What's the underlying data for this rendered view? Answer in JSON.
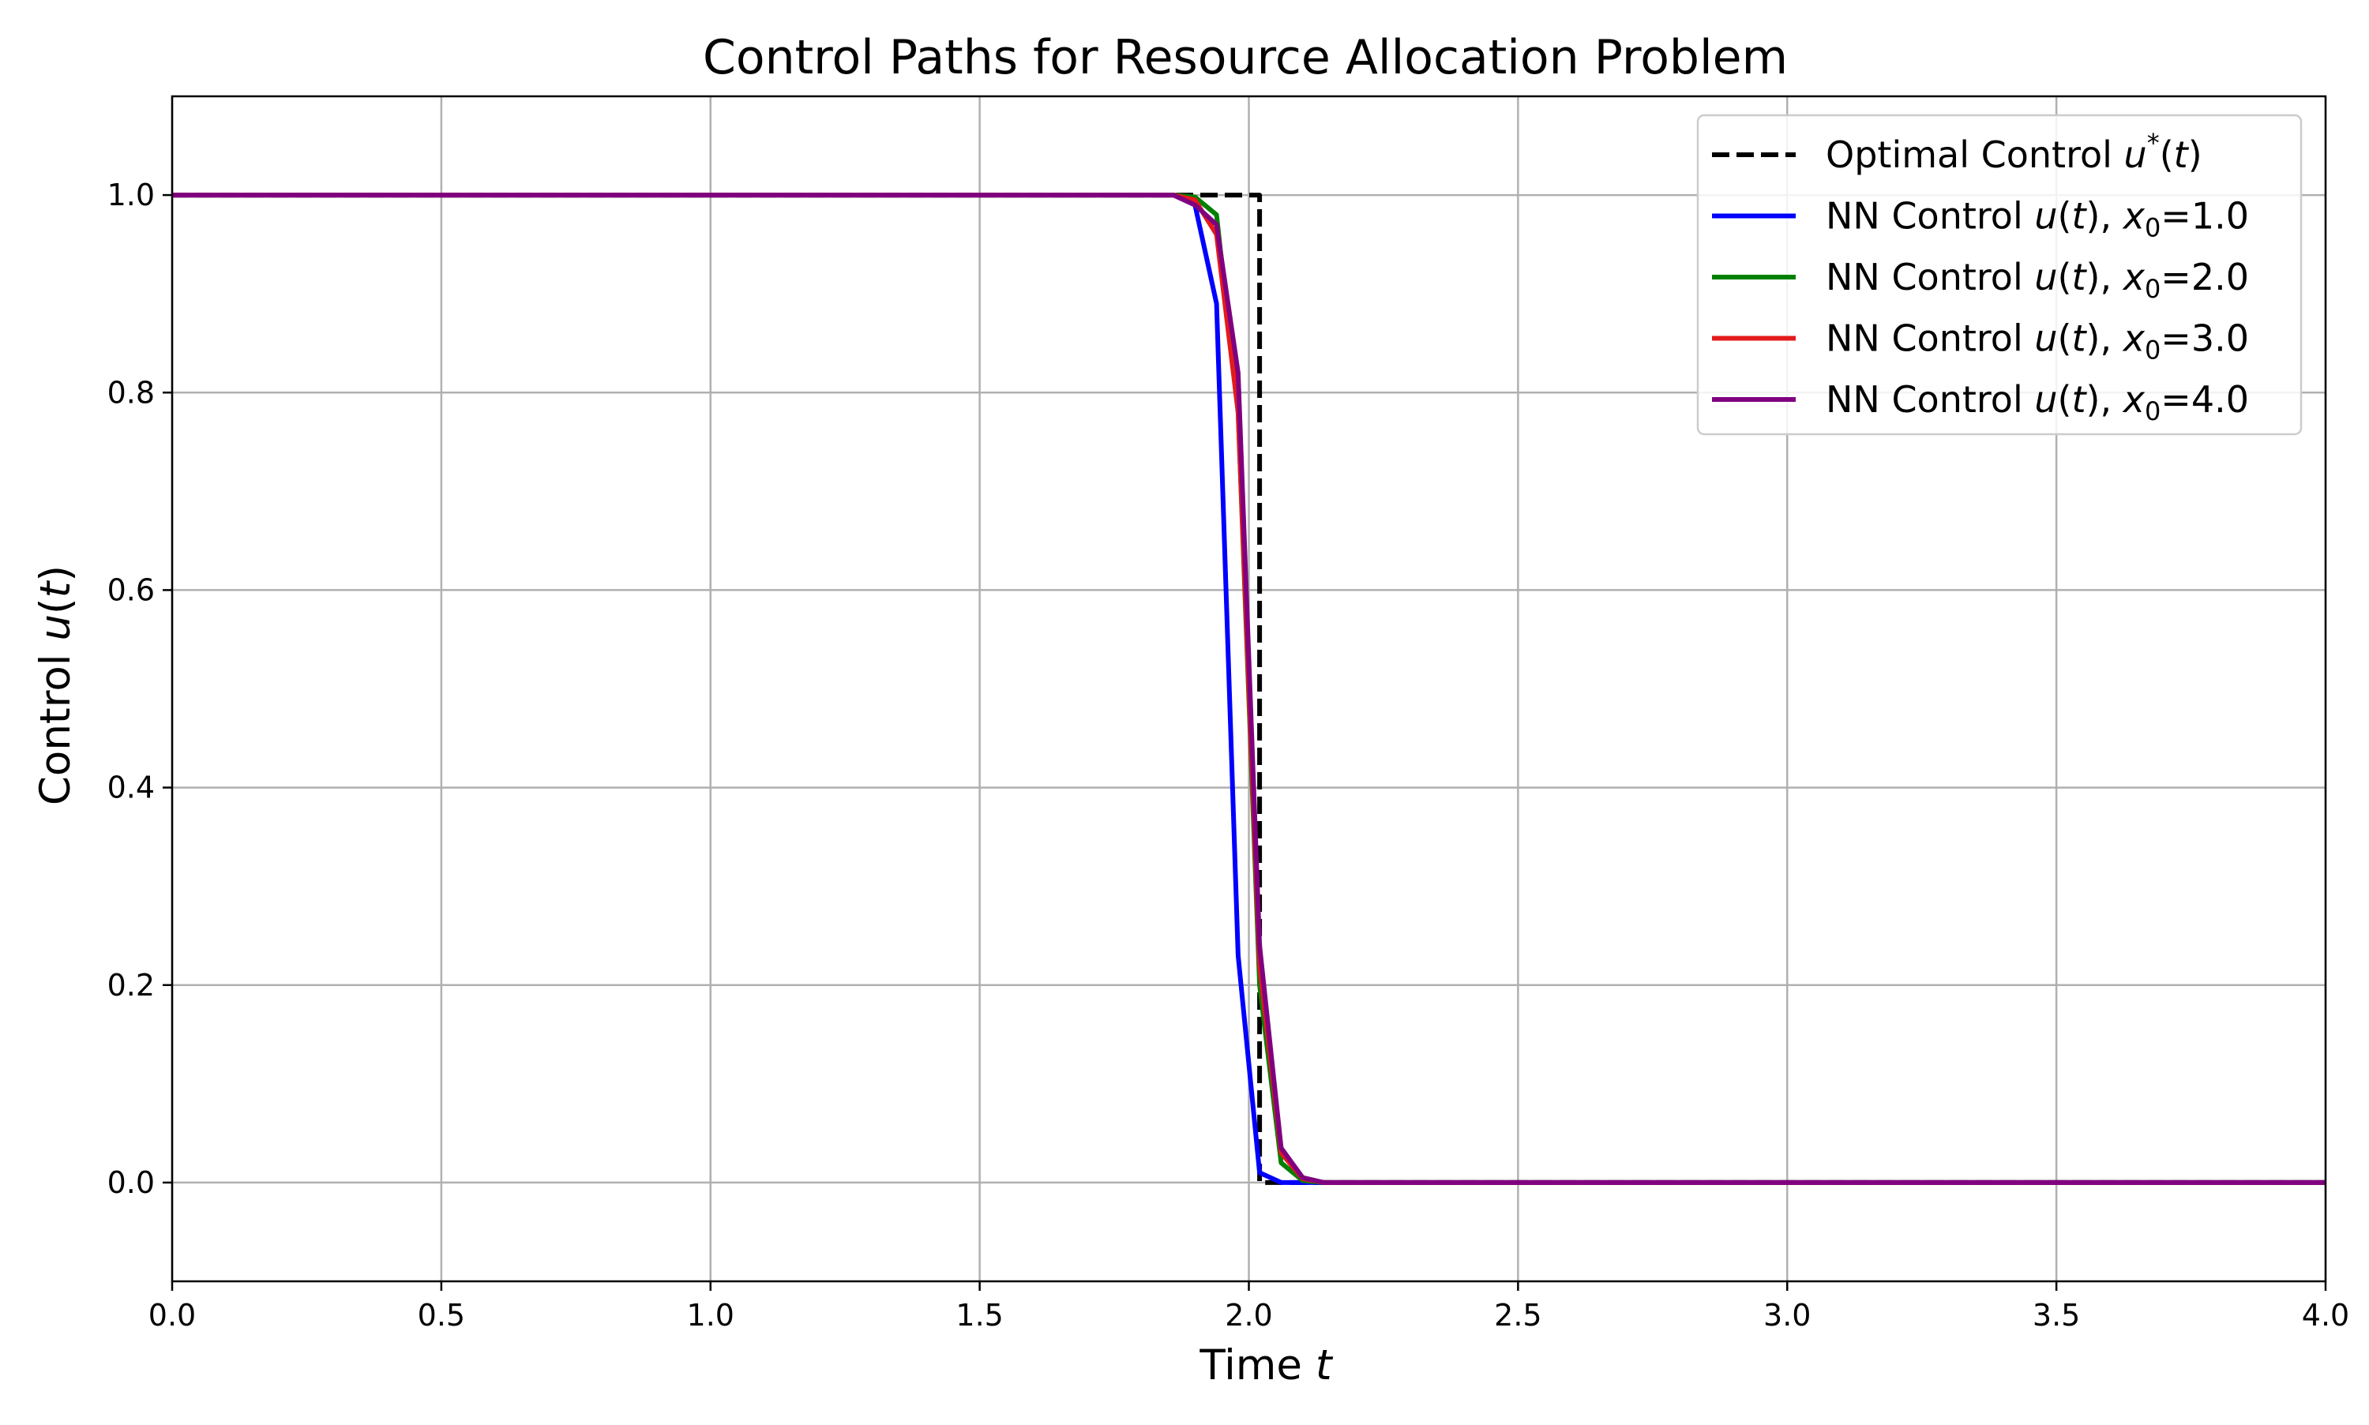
{
  "chart_data": {
    "type": "line",
    "title": "Control Paths for Resource Allocation Problem",
    "xlabel": {
      "prefix": "Time ",
      "var": "t"
    },
    "ylabel": {
      "prefix": "Control ",
      "func": "u",
      "var": "t"
    },
    "xlim": [
      0.0,
      4.0
    ],
    "ylim": [
      -0.1,
      1.1
    ],
    "xticks": [
      0.0,
      0.5,
      1.0,
      1.5,
      2.0,
      2.5,
      3.0,
      3.5,
      4.0
    ],
    "xtick_labels": [
      "0.0",
      "0.5",
      "1.0",
      "1.5",
      "2.0",
      "2.5",
      "3.0",
      "3.5",
      "4.0"
    ],
    "yticks": [
      0.0,
      0.2,
      0.4,
      0.6,
      0.8,
      1.0
    ],
    "ytick_labels": [
      "0.0",
      "0.2",
      "0.4",
      "0.6",
      "0.8",
      "1.0"
    ],
    "grid": true,
    "legend_position": "top-right",
    "series": [
      {
        "name": "Optimal Control u*(t)",
        "legend": {
          "text": "Optimal Control ",
          "func": "u",
          "sup": "*",
          "var": "t"
        },
        "color": "#000000",
        "dashed": true,
        "x": [
          0.0,
          1.98,
          1.98,
          2.02,
          2.02,
          4.0
        ],
        "y": [
          1.0,
          1.0,
          1.0,
          1.0,
          0.0,
          0.0
        ]
      },
      {
        "name": "NN Control u(t), x0=1.0",
        "legend": {
          "text": "NN Control ",
          "func": "u",
          "var": "t",
          "sub": "0",
          "val": "=1.0"
        },
        "color": "#0000ff",
        "dashed": false,
        "x": [
          0.0,
          1.86,
          1.9,
          1.94,
          1.98,
          2.02,
          2.06,
          2.1,
          2.14,
          4.0
        ],
        "y": [
          1.0,
          1.0,
          0.99,
          0.89,
          0.23,
          0.01,
          0.0,
          0.0,
          0.0,
          0.0
        ]
      },
      {
        "name": "NN Control u(t), x0=2.0",
        "legend": {
          "text": "NN Control ",
          "func": "u",
          "var": "t",
          "sub": "0",
          "val": "=2.0"
        },
        "color": "#008000",
        "dashed": false,
        "x": [
          0.0,
          1.86,
          1.9,
          1.94,
          1.98,
          2.02,
          2.06,
          2.1,
          2.14,
          4.0
        ],
        "y": [
          1.0,
          1.0,
          0.998,
          0.98,
          0.78,
          0.2,
          0.02,
          0.002,
          0.0,
          0.0
        ]
      },
      {
        "name": "NN Control u(t), x0=3.0",
        "legend": {
          "text": "NN Control ",
          "func": "u",
          "var": "t",
          "sub": "0",
          "val": "=3.0"
        },
        "color": "#e41a1c",
        "dashed": false,
        "x": [
          0.0,
          1.86,
          1.9,
          1.94,
          1.98,
          2.02,
          2.06,
          2.1,
          2.14,
          4.0
        ],
        "y": [
          1.0,
          1.0,
          0.995,
          0.96,
          0.78,
          0.22,
          0.03,
          0.004,
          0.0,
          0.0
        ]
      },
      {
        "name": "NN Control u(t), x0=4.0",
        "legend": {
          "text": "NN Control ",
          "func": "u",
          "var": "t",
          "sub": "0",
          "val": "=4.0"
        },
        "color": "#800080",
        "dashed": false,
        "x": [
          0.0,
          1.86,
          1.9,
          1.94,
          1.98,
          2.02,
          2.06,
          2.1,
          2.14,
          4.0
        ],
        "y": [
          1.0,
          1.0,
          0.99,
          0.97,
          0.82,
          0.24,
          0.035,
          0.005,
          0.0,
          0.0
        ]
      }
    ]
  }
}
